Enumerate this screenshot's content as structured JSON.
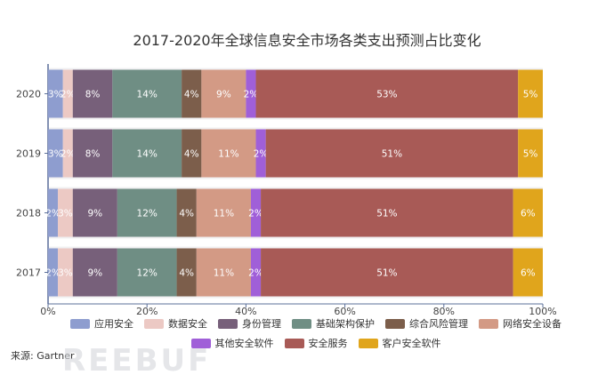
{
  "source": "来源: Gartner",
  "watermark": "REEBUF",
  "chart_data": {
    "type": "bar",
    "orientation": "horizontal",
    "stacked": true,
    "title": "2017-2020年全球信息安全市场各类支出预测占比变化",
    "categories": [
      "2020",
      "2019",
      "2018",
      "2017"
    ],
    "xlim": [
      0,
      100
    ],
    "xticks": [
      "0%",
      "20%",
      "40%",
      "60%",
      "80%",
      "100%"
    ],
    "legend_position": "bottom",
    "series": [
      {
        "name": "应用安全",
        "color": "#8e9dcf",
        "values": [
          3,
          3,
          2,
          2
        ],
        "labels": [
          "3%",
          "3%",
          "2%",
          "2%"
        ]
      },
      {
        "name": "数据安全",
        "color": "#ecc9c4",
        "values": [
          2,
          2,
          3,
          3
        ],
        "labels": [
          "2%",
          "2%",
          "3%",
          "3%"
        ]
      },
      {
        "name": "身份管理",
        "color": "#77607a",
        "values": [
          8,
          8,
          9,
          9
        ],
        "labels": [
          "8%",
          "8%",
          "9%",
          "9%"
        ]
      },
      {
        "name": "基础架构保护",
        "color": "#6f8e84",
        "values": [
          14,
          14,
          12,
          12
        ],
        "labels": [
          "14%",
          "14%",
          "12%",
          "12%"
        ]
      },
      {
        "name": "综合风险管理",
        "color": "#7c5e4b",
        "values": [
          4,
          4,
          4,
          4
        ],
        "labels": [
          "4%",
          "4%",
          "4%",
          "4%"
        ]
      },
      {
        "name": "网络安全设备",
        "color": "#d39a85",
        "values": [
          9,
          11,
          11,
          11
        ],
        "labels": [
          "9%",
          "11%",
          "11%",
          "11%"
        ]
      },
      {
        "name": "其他安全软件",
        "color": "#a05fd8",
        "values": [
          2,
          2,
          2,
          2
        ],
        "labels": [
          "2%",
          "2%",
          "2%",
          "2%"
        ]
      },
      {
        "name": "安全服务",
        "color": "#a85a56",
        "values": [
          53,
          51,
          51,
          51
        ],
        "labels": [
          "53%",
          "51%",
          "51%",
          "51%"
        ]
      },
      {
        "name": "客户安全软件",
        "color": "#e0a51c",
        "values": [
          5,
          5,
          6,
          6
        ],
        "labels": [
          "5%",
          "5%",
          "6%",
          "6%"
        ]
      }
    ]
  }
}
